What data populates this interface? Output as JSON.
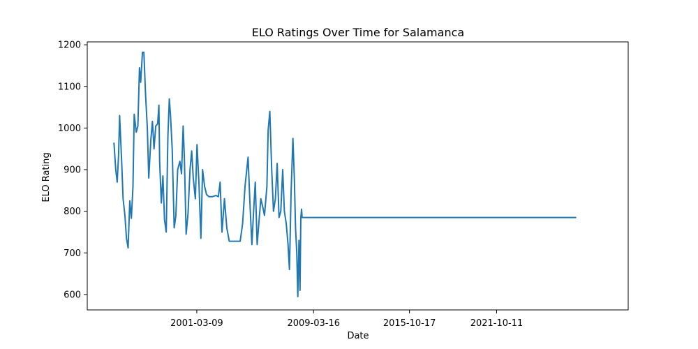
{
  "chart_data": {
    "type": "line",
    "title": "ELO Ratings Over Time for Salamanca",
    "xlabel": "Date",
    "ylabel": "ELO Rating",
    "x_ticks": [
      "2001-03-09",
      "2009-03-16",
      "2015-10-17",
      "2021-10-11"
    ],
    "y_ticks": [
      "600",
      "700",
      "800",
      "900",
      "1000",
      "1100",
      "1200"
    ],
    "xlim": [
      "1993-08-30",
      "2030-10-25"
    ],
    "ylim": [
      563,
      1207
    ],
    "grid": false,
    "line_color": "#1f77b4",
    "series": [
      {
        "name": "",
        "points": [
          [
            "1995-07-01",
            965
          ],
          [
            "1995-08-15",
            900
          ],
          [
            "1995-09-20",
            870
          ],
          [
            "1995-10-25",
            935
          ],
          [
            "1995-11-20",
            1030
          ],
          [
            "1996-01-10",
            920
          ],
          [
            "1996-02-15",
            830
          ],
          [
            "1996-04-01",
            790
          ],
          [
            "1996-05-10",
            735
          ],
          [
            "1996-06-20",
            712
          ],
          [
            "1996-08-01",
            825
          ],
          [
            "1996-09-10",
            783
          ],
          [
            "1996-10-20",
            860
          ],
          [
            "1996-11-20",
            1033
          ],
          [
            "1997-01-10",
            990
          ],
          [
            "1997-02-20",
            1005
          ],
          [
            "1997-04-01",
            1145
          ],
          [
            "1997-05-01",
            1110
          ],
          [
            "1997-06-15",
            1182
          ],
          [
            "1997-07-20",
            1182
          ],
          [
            "1997-09-01",
            1080
          ],
          [
            "1997-10-15",
            1000
          ],
          [
            "1997-11-20",
            880
          ],
          [
            "1998-01-10",
            970
          ],
          [
            "1998-02-20",
            1016
          ],
          [
            "1998-04-01",
            950
          ],
          [
            "1998-05-15",
            1005
          ],
          [
            "1998-07-01",
            1010
          ],
          [
            "1998-08-01",
            1055
          ],
          [
            "1998-08-20",
            920
          ],
          [
            "1998-10-01",
            820
          ],
          [
            "1998-11-10",
            885
          ],
          [
            "1998-12-20",
            780
          ],
          [
            "1999-02-01",
            750
          ],
          [
            "1999-03-15",
            980
          ],
          [
            "1999-04-20",
            1070
          ],
          [
            "1999-05-20",
            1030
          ],
          [
            "1999-07-01",
            950
          ],
          [
            "1999-08-20",
            760
          ],
          [
            "1999-10-01",
            790
          ],
          [
            "1999-11-15",
            900
          ],
          [
            "2000-01-10",
            920
          ],
          [
            "2000-02-20",
            890
          ],
          [
            "2000-04-01",
            1005
          ],
          [
            "2000-05-01",
            930
          ],
          [
            "2000-06-15",
            745
          ],
          [
            "2000-08-01",
            795
          ],
          [
            "2000-09-20",
            900
          ],
          [
            "2000-11-01",
            945
          ],
          [
            "2000-12-10",
            880
          ],
          [
            "2001-02-01",
            830
          ],
          [
            "2001-03-15",
            960
          ],
          [
            "2001-05-01",
            870
          ],
          [
            "2001-06-20",
            735
          ],
          [
            "2001-08-01",
            900
          ],
          [
            "2001-09-20",
            860
          ],
          [
            "2001-11-10",
            840
          ],
          [
            "2002-01-10",
            835
          ],
          [
            "2002-04-01",
            835
          ],
          [
            "2002-07-01",
            838
          ],
          [
            "2002-09-01",
            835
          ],
          [
            "2002-10-15",
            870
          ],
          [
            "2002-12-01",
            750
          ],
          [
            "2003-02-01",
            830
          ],
          [
            "2003-04-01",
            760
          ],
          [
            "2003-06-01",
            728
          ],
          [
            "2003-10-01",
            728
          ],
          [
            "2004-01-01",
            728
          ],
          [
            "2004-03-01",
            728
          ],
          [
            "2004-05-01",
            770
          ],
          [
            "2004-07-01",
            860
          ],
          [
            "2004-09-15",
            930
          ],
          [
            "2004-11-01",
            820
          ],
          [
            "2004-12-20",
            720
          ],
          [
            "2005-02-01",
            800
          ],
          [
            "2005-03-15",
            870
          ],
          [
            "2005-05-01",
            720
          ],
          [
            "2005-06-20",
            780
          ],
          [
            "2005-08-01",
            830
          ],
          [
            "2005-09-20",
            810
          ],
          [
            "2005-11-01",
            790
          ],
          [
            "2006-01-01",
            860
          ],
          [
            "2006-02-01",
            995
          ],
          [
            "2006-03-15",
            1040
          ],
          [
            "2006-05-01",
            900
          ],
          [
            "2006-06-15",
            800
          ],
          [
            "2006-08-01",
            830
          ],
          [
            "2006-09-15",
            915
          ],
          [
            "2006-11-01",
            785
          ],
          [
            "2006-12-15",
            800
          ],
          [
            "2007-02-01",
            900
          ],
          [
            "2007-03-15",
            800
          ],
          [
            "2007-05-01",
            770
          ],
          [
            "2007-06-15",
            720
          ],
          [
            "2007-07-20",
            660
          ],
          [
            "2007-09-01",
            850
          ],
          [
            "2007-10-15",
            975
          ],
          [
            "2007-11-20",
            880
          ],
          [
            "2007-12-20",
            760
          ],
          [
            "2008-01-20",
            700
          ],
          [
            "2008-02-15",
            595
          ],
          [
            "2008-03-15",
            730
          ],
          [
            "2008-04-10",
            610
          ],
          [
            "2008-05-01",
            785
          ],
          [
            "2008-05-20",
            805
          ],
          [
            "2008-06-01",
            785
          ],
          [
            "2012-01-01",
            785
          ],
          [
            "2016-01-01",
            785
          ],
          [
            "2020-01-01",
            785
          ],
          [
            "2024-01-01",
            785
          ],
          [
            "2027-04-01",
            785
          ]
        ]
      }
    ]
  }
}
